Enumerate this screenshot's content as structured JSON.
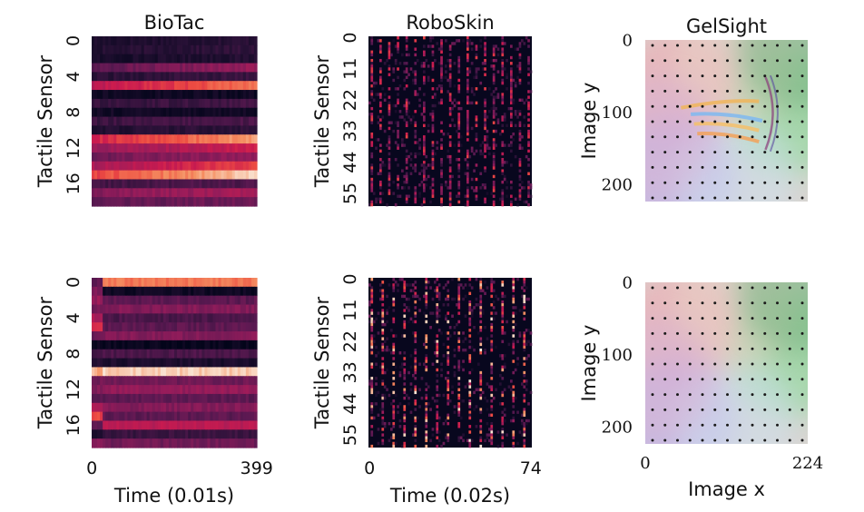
{
  "chart_data": [
    {
      "id": "biotac-top",
      "type": "heatmap",
      "title": "BioTac",
      "xlabel": "",
      "ylabel": "Tactile Sensor",
      "y_ticks": [
        "0",
        "4",
        "8",
        "12",
        "16"
      ],
      "x_ticks": [],
      "n_rows": 19,
      "n_cols": 400,
      "colormap": "rocket",
      "row_levels": [
        0.1,
        0.12,
        0.08,
        0.3,
        0.15,
        0.55,
        0.05,
        0.18,
        0.06,
        0.2,
        0.12,
        0.62,
        0.45,
        0.35,
        0.5,
        0.7,
        0.22,
        0.4,
        0.3
      ],
      "row_ramp": [
        0.05,
        0.05,
        0.05,
        0.15,
        0.05,
        0.25,
        0.0,
        0.05,
        0.0,
        0.05,
        0.05,
        0.25,
        0.15,
        0.1,
        0.2,
        0.25,
        0.05,
        0.1,
        0.05
      ]
    },
    {
      "id": "roboskin-top",
      "type": "heatmap",
      "title": "RoboSkin",
      "xlabel": "",
      "ylabel": "Tactile Sensor",
      "y_ticks": [
        "0",
        "11",
        "22",
        "33",
        "44",
        "55"
      ],
      "x_ticks": [],
      "n_rows": 60,
      "n_cols": 75,
      "colormap": "rocket",
      "column_period": 4,
      "peak_intensity": 0.55
    },
    {
      "id": "gelsight-top",
      "type": "image",
      "title": "GelSight",
      "xlabel": "",
      "ylabel": "Image y",
      "y_ticks": [
        "0",
        "100",
        "200"
      ],
      "x_ticks": [],
      "axis_range": [
        0,
        224
      ],
      "dot_grid": [
        11,
        13
      ],
      "contact_imprint": true
    },
    {
      "id": "biotac-bottom",
      "type": "heatmap",
      "title": "",
      "xlabel": "Time (0.01s)",
      "ylabel": "Tactile Sensor",
      "y_ticks": [
        "0",
        "4",
        "8",
        "12",
        "16"
      ],
      "x_ticks": [
        "0",
        "399"
      ],
      "n_rows": 19,
      "n_cols": 400,
      "colormap": "rocket",
      "onset_col": 25,
      "row_levels": [
        0.8,
        0.05,
        0.3,
        0.4,
        0.25,
        0.3,
        0.4,
        0.02,
        0.25,
        0.1,
        0.95,
        0.35,
        0.45,
        0.3,
        0.4,
        0.3,
        0.55,
        0.2,
        0.35
      ],
      "row_pre": [
        0.3,
        0.4,
        0.45,
        0.35,
        0.5,
        0.65,
        0.35,
        0.05,
        0.2,
        0.15,
        0.9,
        0.35,
        0.4,
        0.3,
        0.5,
        0.7,
        0.3,
        0.1,
        0.4
      ]
    },
    {
      "id": "roboskin-bottom",
      "type": "heatmap",
      "title": "",
      "xlabel": "Time (0.02s)",
      "ylabel": "Tactile Sensor",
      "y_ticks": [
        "0",
        "11",
        "22",
        "33",
        "44",
        "55"
      ],
      "x_ticks": [
        "0",
        "74"
      ],
      "n_rows": 60,
      "n_cols": 75,
      "colormap": "rocket",
      "column_period": 5,
      "peak_intensity": 0.85
    },
    {
      "id": "gelsight-bottom",
      "type": "image",
      "title": "",
      "xlabel": "Image x",
      "ylabel": "Image y",
      "y_ticks": [
        "0",
        "100",
        "200"
      ],
      "x_ticks": [
        "0",
        "224"
      ],
      "axis_range": [
        0,
        224
      ],
      "dot_grid": [
        11,
        13
      ],
      "contact_imprint": false
    }
  ]
}
